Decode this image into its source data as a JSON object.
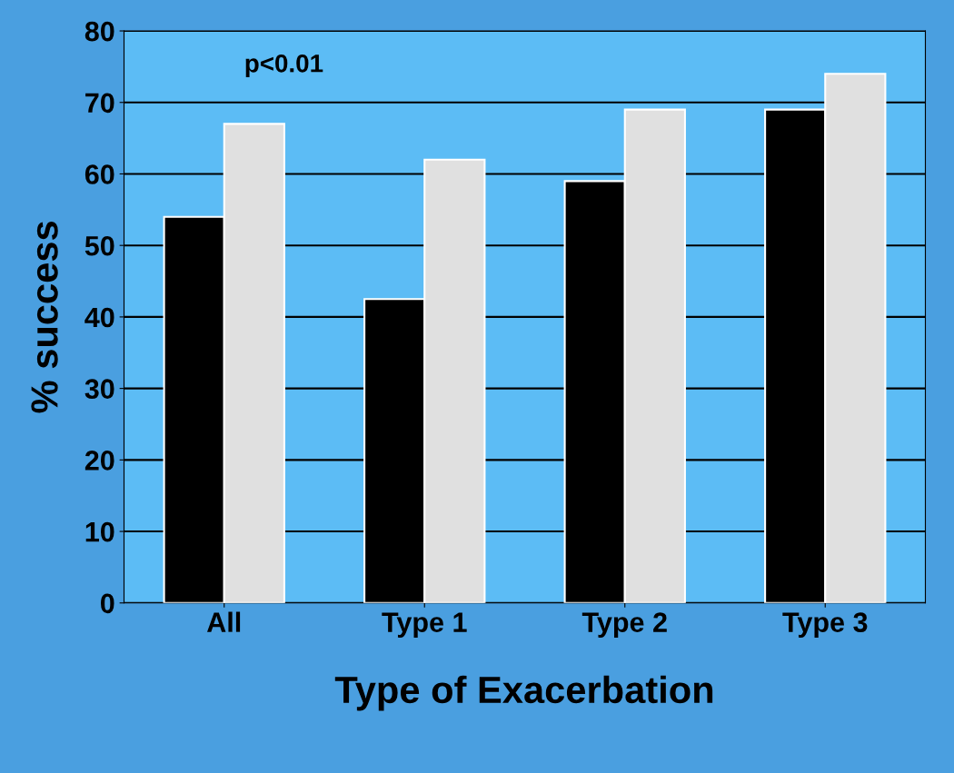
{
  "chart_data": {
    "type": "bar",
    "xlabel": "Type of Exacerbation",
    "ylabel": "% success",
    "categories": [
      "All",
      "Type 1",
      "Type 2",
      "Type 3"
    ],
    "series": [
      {
        "color": "#000000",
        "values": [
          54,
          42.5,
          59,
          69
        ]
      },
      {
        "color": "#e0e0e0",
        "values": [
          67,
          62,
          69,
          74
        ]
      }
    ],
    "ylim": [
      0,
      80
    ],
    "yticks": [
      0,
      10,
      20,
      30,
      40,
      50,
      60,
      70,
      80
    ],
    "grid": "y",
    "annotations": [
      "p<0.01"
    ]
  }
}
